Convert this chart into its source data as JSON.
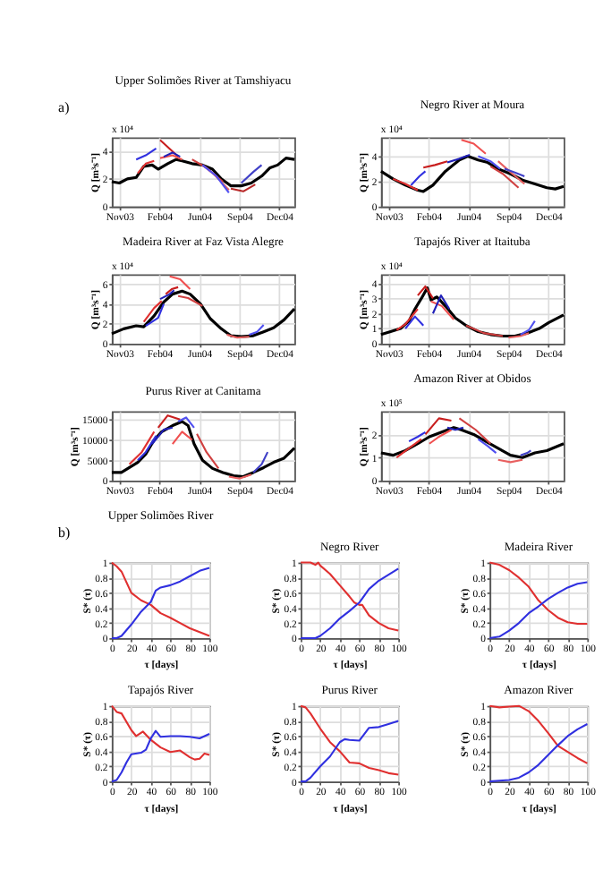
{
  "chart_data": [
    {
      "type": "line",
      "title": "Upper Solimões River at Tamshiyacu",
      "ylabel": "Q [m³s⁻¹]",
      "annotations": [
        "a)",
        "x 10⁴"
      ],
      "grid": true,
      "xlim": [
        "2003-11-01",
        "2005-01-31"
      ],
      "xticks": [
        {
          "value": "2003-11-20",
          "label": "Nov03"
        },
        {
          "value": "2004-02-28",
          "label": "Feb04"
        },
        {
          "value": "2004-06-07",
          "label": "Jun04"
        },
        {
          "value": "2004-09-15",
          "label": "Sep04"
        },
        {
          "value": "2004-12-24",
          "label": "Dec04"
        }
      ],
      "ylim": [
        0,
        5
      ],
      "yticks": [
        0,
        2,
        4
      ],
      "series": [
        {
          "color": "#000000",
          "x": [
            "2003-11-01",
            "2003-11-20",
            "2003-12-10",
            "2004-01-01",
            "2004-01-20",
            "2004-02-10",
            "2004-02-25",
            "2004-03-20",
            "2004-04-10",
            "2004-04-25",
            "2004-05-20",
            "2004-06-15",
            "2004-07-10",
            "2004-08-01",
            "2004-08-25",
            "2004-09-20",
            "2004-10-15",
            "2004-11-10",
            "2004-12-01",
            "2004-12-20",
            "2005-01-10",
            "2005-01-31"
          ],
          "values": [
            1.8,
            1.7,
            2.0,
            2.1,
            2.9,
            3.0,
            2.7,
            3.1,
            3.4,
            3.3,
            3.1,
            3.0,
            2.7,
            2.0,
            1.5,
            1.5,
            1.7,
            2.2,
            2.8,
            3.0,
            3.5,
            3.4
          ]
        },
        {
          "color": "#e03030",
          "x": [
            "2004-01-05",
            "2004-01-25",
            "2004-02-15"
          ],
          "values": [
            2.4,
            3.1,
            3.3
          ]
        },
        {
          "color": "#c81e1e",
          "x": [
            "2004-03-01",
            "2004-03-20",
            "2004-04-15"
          ],
          "values": [
            4.8,
            4.3,
            3.6
          ]
        },
        {
          "color": "#f05050",
          "x": [
            "2004-03-01",
            "2004-04-01",
            "2004-04-25"
          ],
          "values": [
            3.5,
            3.7,
            3.4
          ]
        },
        {
          "color": "#d04040",
          "x": [
            "2004-05-20",
            "2004-06-25",
            "2004-08-05"
          ],
          "values": [
            3.4,
            2.8,
            1.8
          ]
        },
        {
          "color": "#e86060",
          "x": [
            "2004-06-15",
            "2004-07-15",
            "2004-08-20"
          ],
          "values": [
            3.0,
            2.3,
            1.2
          ]
        },
        {
          "color": "#b82828",
          "x": [
            "2004-08-25",
            "2004-09-25",
            "2004-10-25"
          ],
          "values": [
            1.3,
            1.1,
            1.6
          ]
        },
        {
          "color": "#3030e0",
          "x": [
            "2004-01-01",
            "2004-01-25",
            "2004-02-20"
          ],
          "values": [
            3.4,
            3.7,
            4.2
          ]
        },
        {
          "color": "#2020b8",
          "x": [
            "2004-03-10",
            "2004-04-01",
            "2004-04-20"
          ],
          "values": [
            3.6,
            3.9,
            3.6
          ]
        },
        {
          "color": "#5050f0",
          "x": [
            "2004-06-15",
            "2004-07-20",
            "2004-08-20"
          ],
          "values": [
            3.0,
            2.2,
            1.0
          ]
        },
        {
          "color": "#4040c8",
          "x": [
            "2004-09-20",
            "2004-10-20",
            "2004-11-10"
          ],
          "values": [
            1.7,
            2.5,
            3.0
          ]
        }
      ]
    },
    {
      "type": "line",
      "title": "Negro River at Moura",
      "ylabel": "Q [m³s⁻¹]",
      "annotations": [
        "x 10⁴"
      ],
      "grid": true,
      "xlim": [
        "2003-11-01",
        "2005-01-31"
      ],
      "xticks": [
        {
          "value": "2003-11-20",
          "label": "Nov03"
        },
        {
          "value": "2004-02-28",
          "label": "Feb04"
        },
        {
          "value": "2004-06-07",
          "label": "Jun04"
        },
        {
          "value": "2004-09-15",
          "label": "Sep04"
        },
        {
          "value": "2004-12-24",
          "label": "Dec04"
        }
      ],
      "ylim": [
        0,
        5.5
      ],
      "yticks": [
        0,
        2,
        4
      ],
      "series": [
        {
          "color": "#000000",
          "x": [
            "2003-11-01",
            "2003-12-01",
            "2004-01-01",
            "2004-02-01",
            "2004-02-15",
            "2004-03-10",
            "2004-04-10",
            "2004-05-15",
            "2004-06-05",
            "2004-07-01",
            "2004-07-25",
            "2004-08-20",
            "2004-09-20",
            "2004-10-20",
            "2004-11-20",
            "2004-12-20",
            "2005-01-10",
            "2005-01-31"
          ],
          "values": [
            2.8,
            2.2,
            1.7,
            1.3,
            1.2,
            1.7,
            2.8,
            3.7,
            4.0,
            3.7,
            3.5,
            3.0,
            2.6,
            2.1,
            1.8,
            1.5,
            1.4,
            1.6
          ]
        },
        {
          "color": "#e03030",
          "x": [
            "2003-12-01",
            "2004-01-01",
            "2004-02-01"
          ],
          "values": [
            2.2,
            1.8,
            1.3
          ]
        },
        {
          "color": "#c81e1e",
          "x": [
            "2004-02-15",
            "2004-03-15",
            "2004-04-15"
          ],
          "values": [
            3.1,
            3.3,
            3.6
          ]
        },
        {
          "color": "#f05050",
          "x": [
            "2004-05-20",
            "2004-06-20",
            "2004-07-20"
          ],
          "values": [
            5.3,
            5.0,
            4.2
          ]
        },
        {
          "color": "#d04040",
          "x": [
            "2004-08-01",
            "2004-09-01",
            "2004-10-10"
          ],
          "values": [
            3.2,
            2.6,
            1.5
          ]
        },
        {
          "color": "#e86060",
          "x": [
            "2004-08-20",
            "2004-09-25",
            "2004-10-25"
          ],
          "values": [
            3.6,
            2.6,
            1.8
          ]
        },
        {
          "color": "#3030e0",
          "x": [
            "2004-01-15",
            "2004-02-05",
            "2004-02-20"
          ],
          "values": [
            1.7,
            2.4,
            2.8
          ]
        },
        {
          "color": "#2020b8",
          "x": [
            "2004-04-15",
            "2004-05-15",
            "2004-06-10"
          ],
          "values": [
            3.5,
            3.8,
            4.1
          ]
        },
        {
          "color": "#5050f0",
          "x": [
            "2004-07-01",
            "2004-08-01",
            "2004-08-25"
          ],
          "values": [
            4.0,
            3.6,
            3.0
          ]
        },
        {
          "color": "#4040c8",
          "x": [
            "2004-09-05",
            "2004-10-01",
            "2004-10-25"
          ],
          "values": [
            3.0,
            2.7,
            2.4
          ]
        }
      ]
    },
    {
      "type": "line",
      "title": "Madeira River at Faz Vista Alegre",
      "ylabel": "Q [m³s⁻¹]",
      "annotations": [
        "x 10⁴"
      ],
      "grid": true,
      "xlim": [
        "2003-11-01",
        "2005-01-31"
      ],
      "xticks": [
        {
          "value": "2003-11-20",
          "label": "Nov03"
        },
        {
          "value": "2004-02-28",
          "label": "Feb04"
        },
        {
          "value": "2004-06-07",
          "label": "Jun04"
        },
        {
          "value": "2004-09-15",
          "label": "Sep04"
        },
        {
          "value": "2004-12-24",
          "label": "Dec04"
        }
      ],
      "ylim": [
        0,
        7
      ],
      "yticks": [
        0,
        2,
        4,
        6
      ],
      "series": [
        {
          "color": "#000000",
          "x": [
            "2003-11-01",
            "2003-12-01",
            "2004-01-01",
            "2004-01-20",
            "2004-02-15",
            "2004-03-10",
            "2004-04-01",
            "2004-04-25",
            "2004-05-15",
            "2004-06-10",
            "2004-07-05",
            "2004-08-01",
            "2004-08-25",
            "2004-09-20",
            "2004-10-20",
            "2004-11-15",
            "2004-12-10",
            "2005-01-05",
            "2005-01-31"
          ],
          "values": [
            1.0,
            1.5,
            1.8,
            1.7,
            2.8,
            4.2,
            5.0,
            5.3,
            5.0,
            4.0,
            2.5,
            1.5,
            0.8,
            0.7,
            0.8,
            1.2,
            1.6,
            2.4,
            3.5
          ]
        },
        {
          "color": "#e03030",
          "x": [
            "2004-01-20",
            "2004-02-15",
            "2004-03-05"
          ],
          "values": [
            2.2,
            3.6,
            4.3
          ]
        },
        {
          "color": "#c81e1e",
          "x": [
            "2004-03-15",
            "2004-03-30",
            "2004-04-15"
          ],
          "values": [
            5.0,
            5.5,
            5.7
          ]
        },
        {
          "color": "#f05050",
          "x": [
            "2004-03-25",
            "2004-04-20",
            "2004-05-15"
          ],
          "values": [
            6.8,
            6.5,
            5.5
          ]
        },
        {
          "color": "#d04040",
          "x": [
            "2004-04-15",
            "2004-05-10",
            "2004-06-15"
          ],
          "values": [
            4.8,
            4.6,
            3.8
          ]
        },
        {
          "color": "#e86060",
          "x": [
            "2004-08-15",
            "2004-09-10",
            "2004-10-10"
          ],
          "values": [
            0.9,
            0.6,
            0.7
          ]
        },
        {
          "color": "#3030e0",
          "x": [
            "2004-01-25",
            "2004-02-25",
            "2004-03-10"
          ],
          "values": [
            1.8,
            2.6,
            4.0
          ]
        },
        {
          "color": "#2020b8",
          "x": [
            "2004-03-01",
            "2004-03-25",
            "2004-04-05"
          ],
          "values": [
            4.5,
            5.0,
            5.4
          ]
        },
        {
          "color": "#5050f0",
          "x": [
            "2004-10-10",
            "2004-10-30",
            "2004-11-15"
          ],
          "values": [
            0.9,
            1.2,
            1.9
          ]
        }
      ]
    },
    {
      "type": "line",
      "title": "Tapajós River at Itaituba",
      "ylabel": "Q [m³s⁻¹]",
      "annotations": [
        "x 10⁴"
      ],
      "grid": true,
      "xlim": [
        "2003-11-01",
        "2005-01-31"
      ],
      "xticks": [
        {
          "value": "2003-11-20",
          "label": "Nov03"
        },
        {
          "value": "2004-02-28",
          "label": "Feb04"
        },
        {
          "value": "2004-06-07",
          "label": "Jun04"
        },
        {
          "value": "2004-09-15",
          "label": "Sep04"
        },
        {
          "value": "2004-12-24",
          "label": "Dec04"
        }
      ],
      "ylim": [
        0,
        4.6
      ],
      "yticks": [
        0,
        1,
        2,
        3,
        4
      ],
      "series": [
        {
          "color": "#000000",
          "x": [
            "2003-11-01",
            "2003-11-25",
            "2003-12-20",
            "2004-01-10",
            "2004-01-25",
            "2004-02-10",
            "2004-02-25",
            "2004-03-05",
            "2004-03-20",
            "2004-04-10",
            "2004-05-05",
            "2004-06-01",
            "2004-07-01",
            "2004-08-01",
            "2004-09-01",
            "2004-10-01",
            "2004-11-01",
            "2004-12-01",
            "2004-12-25",
            "2005-01-31"
          ],
          "values": [
            0.6,
            0.8,
            1.0,
            1.5,
            2.3,
            3.0,
            3.7,
            2.9,
            3.1,
            2.5,
            1.7,
            1.2,
            0.8,
            0.6,
            0.5,
            0.5,
            0.7,
            1.0,
            1.4,
            1.9
          ]
        },
        {
          "color": "#e03030",
          "x": [
            "2003-12-10",
            "2004-01-01",
            "2004-02-01"
          ],
          "values": [
            0.9,
            1.3,
            2.3
          ]
        },
        {
          "color": "#c81e1e",
          "x": [
            "2004-02-01",
            "2004-02-20",
            "2004-03-10"
          ],
          "values": [
            3.2,
            3.8,
            3.0
          ]
        },
        {
          "color": "#f05050",
          "x": [
            "2004-03-05",
            "2004-04-01",
            "2004-05-01"
          ],
          "values": [
            2.8,
            2.5,
            1.6
          ]
        },
        {
          "color": "#d04040",
          "x": [
            "2004-06-01",
            "2004-07-15",
            "2004-09-01"
          ],
          "values": [
            1.2,
            0.7,
            0.5
          ]
        },
        {
          "color": "#e86060",
          "x": [
            "2004-09-15",
            "2004-10-15",
            "2004-11-05"
          ],
          "values": [
            0.4,
            0.5,
            0.7
          ]
        },
        {
          "color": "#3030e0",
          "x": [
            "2004-01-01",
            "2004-01-25",
            "2004-02-15"
          ],
          "values": [
            1.0,
            1.8,
            1.2
          ]
        },
        {
          "color": "#2020b8",
          "x": [
            "2004-03-10",
            "2004-03-30",
            "2004-04-20"
          ],
          "values": [
            2.0,
            3.2,
            2.3
          ]
        },
        {
          "color": "#5050f0",
          "x": [
            "2004-10-15",
            "2004-11-05",
            "2004-11-20"
          ],
          "values": [
            0.6,
            0.9,
            1.5
          ]
        }
      ]
    },
    {
      "type": "line",
      "title": "Purus River at Canitama",
      "ylabel": "Q [m³s⁻¹]",
      "grid": true,
      "xlim": [
        "2003-11-01",
        "2005-01-31"
      ],
      "xticks": [
        {
          "value": "2003-11-20",
          "label": "Nov03"
        },
        {
          "value": "2004-02-28",
          "label": "Feb04"
        },
        {
          "value": "2004-06-07",
          "label": "Jun04"
        },
        {
          "value": "2004-09-15",
          "label": "Sep04"
        },
        {
          "value": "2004-12-24",
          "label": "Dec04"
        }
      ],
      "ylim": [
        0,
        17000
      ],
      "yticks": [
        0,
        5000,
        10000,
        15000
      ],
      "series": [
        {
          "color": "#000000",
          "x": [
            "2003-11-01",
            "2003-11-25",
            "2003-12-15",
            "2004-01-05",
            "2004-01-25",
            "2004-02-15",
            "2004-03-05",
            "2004-04-01",
            "2004-04-25",
            "2004-05-10",
            "2004-05-25",
            "2004-06-15",
            "2004-07-10",
            "2004-08-05",
            "2004-09-01",
            "2004-09-25",
            "2004-10-20",
            "2004-11-15",
            "2004-12-10",
            "2005-01-05",
            "2005-01-31"
          ],
          "values": [
            2000,
            2000,
            3200,
            4500,
            6500,
            10000,
            12000,
            13500,
            14500,
            13500,
            9000,
            5000,
            3000,
            2000,
            1200,
            1000,
            2000,
            3200,
            4500,
            5500,
            8000
          ]
        },
        {
          "color": "#e03030",
          "x": [
            "2003-12-15",
            "2004-01-15",
            "2004-02-15"
          ],
          "values": [
            4000,
            7000,
            12000
          ]
        },
        {
          "color": "#c81e1e",
          "x": [
            "2004-02-25",
            "2004-03-20",
            "2004-04-20"
          ],
          "values": [
            13000,
            16000,
            15000
          ]
        },
        {
          "color": "#f05050",
          "x": [
            "2004-04-01",
            "2004-04-25",
            "2004-05-20"
          ],
          "values": [
            9000,
            12000,
            10000
          ]
        },
        {
          "color": "#d04040",
          "x": [
            "2004-06-01",
            "2004-06-25",
            "2004-07-25"
          ],
          "values": [
            11500,
            7000,
            3000
          ]
        },
        {
          "color": "#e86060",
          "x": [
            "2004-08-20",
            "2004-09-15",
            "2004-10-15"
          ],
          "values": [
            1000,
            500,
            1500
          ]
        },
        {
          "color": "#3030e0",
          "x": [
            "2004-01-05",
            "2004-01-25",
            "2004-02-20"
          ],
          "values": [
            5000,
            7000,
            11000
          ]
        },
        {
          "color": "#2020b8",
          "x": [
            "2004-02-10",
            "2004-03-10",
            "2004-04-01"
          ],
          "values": [
            9000,
            12500,
            13000
          ]
        },
        {
          "color": "#5050f0",
          "x": [
            "2004-04-15",
            "2004-05-05",
            "2004-05-25"
          ],
          "values": [
            14500,
            15500,
            13000
          ]
        },
        {
          "color": "#4040c8",
          "x": [
            "2004-10-20",
            "2004-11-10",
            "2004-11-25"
          ],
          "values": [
            2000,
            4000,
            7000
          ]
        }
      ]
    },
    {
      "type": "line",
      "title": "Amazon River at Obidos",
      "ylabel": "Q [m³s⁻¹]",
      "annotations": [
        "x 10⁵"
      ],
      "grid": true,
      "xlim": [
        "2003-11-01",
        "2005-01-31"
      ],
      "xticks": [
        {
          "value": "2003-11-20",
          "label": "Nov03"
        },
        {
          "value": "2004-02-28",
          "label": "Feb04"
        },
        {
          "value": "2004-06-07",
          "label": "Jun04"
        },
        {
          "value": "2004-09-15",
          "label": "Sep04"
        },
        {
          "value": "2004-12-24",
          "label": "Dec04"
        }
      ],
      "ylim": [
        0,
        3
      ],
      "yticks": [
        0,
        1,
        2
      ],
      "series": [
        {
          "color": "#000000",
          "x": [
            "2003-11-01",
            "2003-12-01",
            "2004-01-01",
            "2004-02-01",
            "2004-03-01",
            "2004-04-01",
            "2004-05-01",
            "2004-05-20",
            "2004-06-20",
            "2004-07-20",
            "2004-08-20",
            "2004-09-20",
            "2004-10-20",
            "2004-11-20",
            "2004-12-20",
            "2005-01-31"
          ],
          "values": [
            1.2,
            1.1,
            1.3,
            1.6,
            1.9,
            2.1,
            2.3,
            2.2,
            2.0,
            1.7,
            1.4,
            1.1,
            1.0,
            1.2,
            1.3,
            1.6
          ]
        },
        {
          "color": "#e03030",
          "x": [
            "2003-12-10",
            "2004-01-10",
            "2004-02-10"
          ],
          "values": [
            1.0,
            1.4,
            1.8
          ]
        },
        {
          "color": "#c81e1e",
          "x": [
            "2004-02-20",
            "2004-03-25",
            "2004-04-25"
          ],
          "values": [
            2.0,
            2.7,
            2.6
          ]
        },
        {
          "color": "#f05050",
          "x": [
            "2004-03-01",
            "2004-03-25",
            "2004-04-25"
          ],
          "values": [
            1.6,
            1.9,
            2.2
          ]
        },
        {
          "color": "#d04040",
          "x": [
            "2004-05-15",
            "2004-06-25",
            "2004-08-01"
          ],
          "values": [
            2.7,
            2.2,
            1.6
          ]
        },
        {
          "color": "#e86060",
          "x": [
            "2004-08-20",
            "2004-09-20",
            "2004-10-20"
          ],
          "values": [
            0.9,
            0.8,
            0.9
          ]
        },
        {
          "color": "#3030e0",
          "x": [
            "2004-01-10",
            "2004-02-01",
            "2004-02-20"
          ],
          "values": [
            1.7,
            1.9,
            2.1
          ]
        },
        {
          "color": "#2020b8",
          "x": [
            "2004-04-15",
            "2004-05-05",
            "2004-05-25"
          ],
          "values": [
            2.3,
            2.2,
            2.3
          ]
        },
        {
          "color": "#5050f0",
          "x": [
            "2004-07-01",
            "2004-07-25",
            "2004-08-15"
          ],
          "values": [
            1.8,
            1.5,
            1.2
          ]
        },
        {
          "color": "#4040c8",
          "x": [
            "2004-10-15",
            "2004-11-01",
            "2004-11-10"
          ],
          "values": [
            1.1,
            1.2,
            1.3
          ]
        }
      ]
    },
    {
      "type": "line",
      "title": "Upper Solimões River",
      "xlabel": "τ [days]",
      "ylabel": "S* (τ)",
      "annotations": [
        "b)"
      ],
      "grid": true,
      "xlim": [
        0,
        100
      ],
      "xticks": [
        0,
        20,
        40,
        60,
        80,
        100
      ],
      "ylim": [
        0,
        1
      ],
      "yticks": [
        0,
        0.2,
        0.4,
        0.6,
        0.8,
        1
      ],
      "series": [
        {
          "color": "#e03030",
          "x": [
            0,
            5,
            10,
            20,
            30,
            40,
            50,
            60,
            70,
            80,
            90,
            100
          ],
          "values": [
            1.0,
            0.95,
            0.88,
            0.6,
            0.5,
            0.44,
            0.33,
            0.27,
            0.2,
            0.13,
            0.08,
            0.03
          ]
        },
        {
          "color": "#3030e0",
          "x": [
            0,
            5,
            10,
            20,
            30,
            40,
            45,
            50,
            60,
            70,
            80,
            90,
            100
          ],
          "values": [
            0,
            0,
            0.03,
            0.18,
            0.35,
            0.48,
            0.63,
            0.67,
            0.7,
            0.75,
            0.82,
            0.89,
            0.93
          ]
        }
      ]
    },
    {
      "type": "line",
      "title": "Negro River",
      "xlabel": "τ [days]",
      "ylabel": "S* (τ)",
      "grid": true,
      "xlim": [
        0,
        100
      ],
      "xticks": [
        0,
        20,
        40,
        60,
        80,
        100
      ],
      "ylim": [
        0,
        1
      ],
      "yticks": [
        0,
        0.2,
        0.4,
        0.6,
        0.8,
        1
      ],
      "series": [
        {
          "color": "#e03030",
          "x": [
            0,
            10,
            15,
            18,
            20,
            30,
            40,
            50,
            55,
            60,
            63,
            70,
            80,
            90,
            100
          ],
          "values": [
            1,
            1,
            0.97,
            1,
            0.96,
            0.85,
            0.7,
            0.55,
            0.47,
            0.44,
            0.44,
            0.3,
            0.2,
            0.13,
            0.1
          ]
        },
        {
          "color": "#3030e0",
          "x": [
            0,
            15,
            20,
            30,
            40,
            50,
            60,
            70,
            80,
            90,
            100
          ],
          "values": [
            0,
            0,
            0.03,
            0.13,
            0.26,
            0.36,
            0.47,
            0.65,
            0.76,
            0.84,
            0.92
          ]
        }
      ]
    },
    {
      "type": "line",
      "title": "Madeira River",
      "xlabel": "τ [days]",
      "ylabel": "S* (τ)",
      "grid": true,
      "xlim": [
        0,
        100
      ],
      "xticks": [
        0,
        20,
        40,
        60,
        80,
        100
      ],
      "ylim": [
        0,
        1
      ],
      "yticks": [
        0,
        0.2,
        0.4,
        0.6,
        0.8,
        1
      ],
      "series": [
        {
          "color": "#e03030",
          "x": [
            0,
            10,
            20,
            30,
            40,
            50,
            60,
            70,
            80,
            90,
            100
          ],
          "values": [
            1,
            0.97,
            0.9,
            0.8,
            0.68,
            0.5,
            0.37,
            0.27,
            0.21,
            0.19,
            0.19
          ]
        },
        {
          "color": "#3030e0",
          "x": [
            0,
            10,
            20,
            30,
            40,
            50,
            60,
            70,
            80,
            90,
            100
          ],
          "values": [
            0,
            0.02,
            0.1,
            0.2,
            0.33,
            0.42,
            0.52,
            0.6,
            0.67,
            0.72,
            0.74
          ]
        }
      ]
    },
    {
      "type": "line",
      "title": "Tapajós River",
      "xlabel": "τ [days]",
      "ylabel": "S* (τ)",
      "grid": true,
      "xlim": [
        0,
        100
      ],
      "xticks": [
        0,
        20,
        40,
        60,
        80,
        100
      ],
      "ylim": [
        0,
        1
      ],
      "yticks": [
        0,
        0.2,
        0.4,
        0.6,
        0.8,
        1
      ],
      "series": [
        {
          "color": "#e03030",
          "x": [
            0,
            5,
            10,
            20,
            25,
            32,
            40,
            50,
            60,
            70,
            80,
            85,
            90,
            95,
            100
          ],
          "values": [
            1,
            0.92,
            0.9,
            0.68,
            0.6,
            0.66,
            0.55,
            0.45,
            0.39,
            0.41,
            0.32,
            0.29,
            0.3,
            0.37,
            0.35
          ]
        },
        {
          "color": "#3030e0",
          "x": [
            0,
            5,
            10,
            15,
            20,
            30,
            35,
            40,
            45,
            50,
            60,
            70,
            80,
            90,
            100
          ],
          "values": [
            0,
            0.02,
            0.12,
            0.25,
            0.36,
            0.38,
            0.42,
            0.57,
            0.67,
            0.59,
            0.6,
            0.6,
            0.59,
            0.57,
            0.63
          ]
        }
      ]
    },
    {
      "type": "line",
      "title": "Purus River",
      "xlabel": "τ [days]",
      "ylabel": "S* (τ)",
      "grid": true,
      "xlim": [
        0,
        100
      ],
      "xticks": [
        0,
        20,
        40,
        60,
        80,
        100
      ],
      "ylim": [
        0,
        1
      ],
      "yticks": [
        0,
        0.2,
        0.4,
        0.6,
        0.8,
        1
      ],
      "series": [
        {
          "color": "#e03030",
          "x": [
            0,
            5,
            10,
            20,
            30,
            40,
            50,
            60,
            70,
            80,
            90,
            100
          ],
          "values": [
            1,
            0.98,
            0.9,
            0.7,
            0.52,
            0.4,
            0.25,
            0.24,
            0.18,
            0.15,
            0.11,
            0.09
          ]
        },
        {
          "color": "#3030e0",
          "x": [
            0,
            5,
            10,
            20,
            30,
            40,
            45,
            50,
            60,
            70,
            80,
            90,
            100
          ],
          "values": [
            0,
            0,
            0.05,
            0.2,
            0.33,
            0.52,
            0.56,
            0.55,
            0.54,
            0.71,
            0.72,
            0.76,
            0.8
          ]
        }
      ]
    },
    {
      "type": "line",
      "title": "Amazon River",
      "xlabel": "τ [days]",
      "ylabel": "S* (τ)",
      "grid": true,
      "xlim": [
        0,
        100
      ],
      "xticks": [
        0,
        20,
        40,
        60,
        80,
        100
      ],
      "ylim": [
        0,
        1
      ],
      "yticks": [
        0,
        0.2,
        0.4,
        0.6,
        0.8,
        1
      ],
      "series": [
        {
          "color": "#e03030",
          "x": [
            0,
            10,
            20,
            30,
            40,
            50,
            60,
            70,
            80,
            90,
            100
          ],
          "values": [
            1,
            0.98,
            0.99,
            1.0,
            0.93,
            0.8,
            0.64,
            0.47,
            0.39,
            0.31,
            0.24
          ]
        },
        {
          "color": "#3030e0",
          "x": [
            0,
            10,
            20,
            30,
            40,
            50,
            60,
            70,
            80,
            90,
            100
          ],
          "values": [
            0,
            0.01,
            0.02,
            0.05,
            0.12,
            0.22,
            0.35,
            0.48,
            0.6,
            0.69,
            0.76
          ]
        }
      ]
    }
  ]
}
